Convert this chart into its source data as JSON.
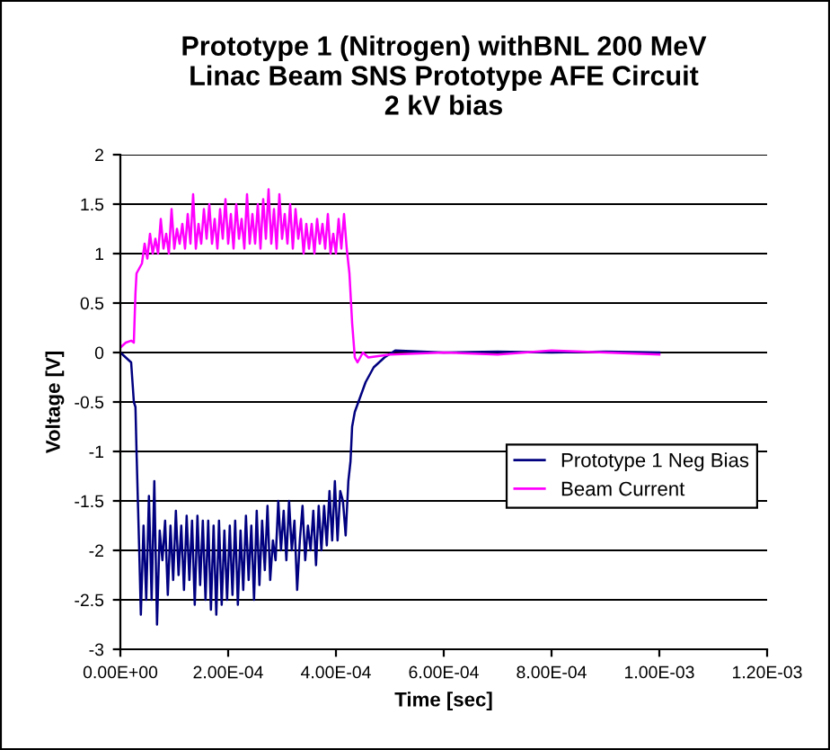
{
  "chart_data": {
    "type": "line",
    "title": "Prototype 1 (Nitrogen) withBNL 200 MeV\nLinac Beam SNS Prototype AFE Circuit\n2 kV bias",
    "xlabel": "Time [sec]",
    "ylabel": "Voltage [V]",
    "xlim": [
      0,
      0.0012
    ],
    "xticks": [
      {
        "value": 0,
        "label": "0.00E+00"
      },
      {
        "value": 0.0002,
        "label": "2.00E-04"
      },
      {
        "value": 0.0004,
        "label": "4.00E-04"
      },
      {
        "value": 0.0006,
        "label": "6.00E-04"
      },
      {
        "value": 0.0008,
        "label": "8.00E-04"
      },
      {
        "value": 0.001,
        "label": "1.00E-03"
      },
      {
        "value": 0.0012,
        "label": "1.20E-03"
      }
    ],
    "ylim": [
      -3,
      2
    ],
    "yticks": [
      -3,
      -2.5,
      -2,
      -1.5,
      -1,
      -0.5,
      0,
      0.5,
      1,
      1.5,
      2
    ],
    "grid": "y",
    "legend": "right",
    "marker": "none",
    "line_style": "solid",
    "series": [
      {
        "name": "Prototype 1 Neg Bias",
        "color": "#000080",
        "x": [
          0,
          1e-05,
          2e-05,
          2.5e-05,
          2.8e-05,
          3e-05,
          3.5e-05,
          3.8e-05,
          4.3e-05,
          4.8e-05,
          5.3e-05,
          5.8e-05,
          6.3e-05,
          6.8e-05,
          7.3e-05,
          7.8e-05,
          8.3e-05,
          8.8e-05,
          9.3e-05,
          9.8e-05,
          0.000103,
          0.000108,
          0.000113,
          0.000118,
          0.000123,
          0.000128,
          0.000133,
          0.000138,
          0.000143,
          0.000148,
          0.000153,
          0.000158,
          0.000163,
          0.000168,
          0.000173,
          0.000178,
          0.000183,
          0.000188,
          0.000193,
          0.000198,
          0.000203,
          0.000208,
          0.000213,
          0.000218,
          0.000223,
          0.000228,
          0.000233,
          0.000238,
          0.000243,
          0.000248,
          0.000253,
          0.000258,
          0.000263,
          0.000268,
          0.000273,
          0.000278,
          0.000283,
          0.000288,
          0.000293,
          0.000298,
          0.000303,
          0.000308,
          0.000313,
          0.000318,
          0.000323,
          0.000328,
          0.000333,
          0.000338,
          0.000343,
          0.000348,
          0.000353,
          0.000358,
          0.000363,
          0.000368,
          0.000373,
          0.000378,
          0.000383,
          0.000388,
          0.000393,
          0.000398,
          0.000403,
          0.000408,
          0.000413,
          0.000418,
          0.000423,
          0.000427,
          0.00043,
          0.000435,
          0.000445,
          0.000455,
          0.00047,
          0.00049,
          0.00051,
          0.0006,
          0.0007,
          0.0008,
          0.0009,
          0.001
        ],
        "values": [
          0,
          -0.05,
          -0.1,
          -0.5,
          -0.55,
          -1.0,
          -2.0,
          -2.65,
          -1.75,
          -2.5,
          -1.45,
          -2.5,
          -1.3,
          -2.75,
          -1.8,
          -2.1,
          -1.7,
          -2.45,
          -1.75,
          -2.3,
          -1.6,
          -2.25,
          -1.75,
          -2.4,
          -1.65,
          -2.3,
          -1.7,
          -2.55,
          -1.65,
          -2.35,
          -1.7,
          -2.5,
          -1.7,
          -2.6,
          -1.75,
          -2.65,
          -1.7,
          -2.55,
          -1.8,
          -2.5,
          -1.75,
          -2.45,
          -1.7,
          -2.55,
          -1.8,
          -2.4,
          -1.65,
          -2.3,
          -1.75,
          -2.5,
          -1.6,
          -2.35,
          -1.7,
          -2.2,
          -1.55,
          -2.3,
          -1.9,
          -2.1,
          -1.5,
          -2.0,
          -1.6,
          -2.1,
          -1.5,
          -2.0,
          -1.7,
          -2.4,
          -1.9,
          -1.55,
          -2.1,
          -1.75,
          -2.0,
          -1.6,
          -2.15,
          -1.55,
          -2.0,
          -1.55,
          -1.95,
          -1.4,
          -1.9,
          -1.3,
          -1.9,
          -1.4,
          -1.5,
          -1.85,
          -1.3,
          -1.1,
          -0.75,
          -0.6,
          -0.45,
          -0.3,
          -0.15,
          -0.05,
          0.02,
          0.0,
          0.01,
          0.0,
          0.01,
          0.0
        ]
      },
      {
        "name": "Beam Current",
        "color": "#ff00ff",
        "x": [
          0,
          1e-05,
          2e-05,
          2.5e-05,
          2.8e-05,
          3e-05,
          3.5e-05,
          4e-05,
          4.5e-05,
          5e-05,
          5.5e-05,
          6e-05,
          6.5e-05,
          7e-05,
          7.5e-05,
          8e-05,
          8.5e-05,
          9e-05,
          9.5e-05,
          0.0001,
          0.000105,
          0.00011,
          0.000115,
          0.00012,
          0.000125,
          0.00013,
          0.000135,
          0.00014,
          0.000145,
          0.00015,
          0.000155,
          0.00016,
          0.000165,
          0.00017,
          0.000175,
          0.00018,
          0.000185,
          0.00019,
          0.000195,
          0.0002,
          0.000205,
          0.00021,
          0.000215,
          0.00022,
          0.000225,
          0.00023,
          0.000235,
          0.00024,
          0.000245,
          0.00025,
          0.000255,
          0.00026,
          0.000265,
          0.00027,
          0.000275,
          0.00028,
          0.000285,
          0.00029,
          0.000295,
          0.0003,
          0.000305,
          0.00031,
          0.000315,
          0.00032,
          0.000325,
          0.00033,
          0.000335,
          0.00034,
          0.000345,
          0.00035,
          0.000355,
          0.00036,
          0.000365,
          0.00037,
          0.000375,
          0.00038,
          0.000385,
          0.00039,
          0.000395,
          0.0004,
          0.000405,
          0.00041,
          0.000415,
          0.00042,
          0.000425,
          0.00043,
          0.000435,
          0.00044,
          0.00045,
          0.00046,
          0.0005,
          0.0006,
          0.0007,
          0.0008,
          0.0009,
          0.001
        ],
        "values": [
          0.05,
          0.1,
          0.12,
          0.1,
          0.6,
          0.8,
          0.85,
          0.9,
          1.1,
          0.95,
          1.2,
          1.0,
          1.15,
          1.0,
          1.35,
          1.05,
          1.2,
          1.0,
          1.45,
          1.05,
          1.25,
          1.1,
          1.3,
          1.05,
          1.4,
          1.1,
          1.6,
          1.05,
          1.3,
          1.1,
          1.45,
          1.15,
          1.5,
          1.1,
          1.35,
          1.05,
          1.45,
          1.15,
          1.55,
          1.1,
          1.4,
          1.05,
          1.5,
          1.15,
          1.35,
          1.05,
          1.6,
          1.1,
          1.4,
          1.1,
          1.5,
          1.05,
          1.55,
          1.15,
          1.65,
          1.1,
          1.45,
          1.05,
          1.6,
          1.15,
          1.4,
          1.1,
          1.5,
          1.05,
          1.45,
          1.15,
          1.35,
          1.0,
          1.3,
          1.05,
          1.3,
          1.0,
          1.35,
          1.1,
          1.3,
          1.05,
          1.4,
          1.0,
          1.2,
          1.0,
          1.35,
          1.05,
          1.4,
          1.05,
          0.8,
          0.3,
          -0.05,
          -0.1,
          0.0,
          -0.05,
          -0.02,
          0.0,
          -0.02,
          0.02,
          0.0,
          -0.02
        ]
      }
    ]
  }
}
